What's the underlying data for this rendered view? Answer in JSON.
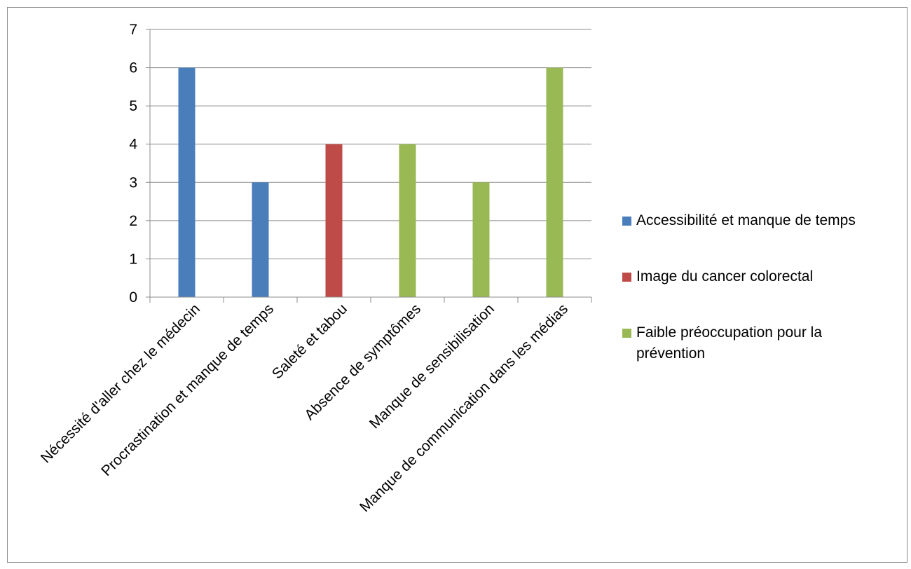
{
  "chart_data": {
    "type": "bar",
    "categories": [
      "Nécessité d'aller chez le médecin",
      "Procrastination et manque de temps",
      "Saleté et tabou",
      "Absence de symptômes",
      "Manque de sensibilisation",
      "Manque de communication dans les médias"
    ],
    "series": [
      {
        "name": "Accessibilité et manque de temps",
        "color": "#4a7ebb",
        "values": [
          6,
          3,
          null,
          null,
          null,
          null
        ]
      },
      {
        "name": "Image du cancer colorectal",
        "color": "#be4b48",
        "values": [
          null,
          null,
          4,
          null,
          null,
          null
        ]
      },
      {
        "name": "Faible préoccupation pour la prévention",
        "color": "#98b954",
        "values": [
          null,
          null,
          null,
          4,
          3,
          6
        ]
      }
    ],
    "ylim": [
      0,
      7
    ],
    "yticks": [
      "0",
      "1",
      "2",
      "3",
      "4",
      "5",
      "6",
      "7"
    ],
    "grid": true,
    "legend_position": "right"
  }
}
